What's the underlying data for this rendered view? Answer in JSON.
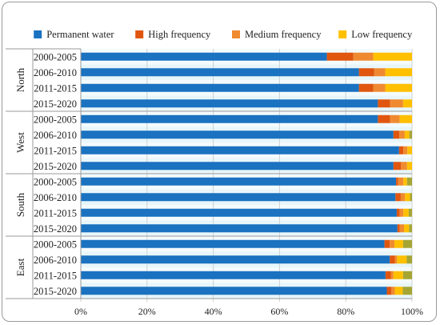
{
  "chart_data": {
    "type": "bar",
    "orientation": "horizontal",
    "stacked": true,
    "percent": true,
    "xlim": [
      0,
      100
    ],
    "x_ticks": [
      "0%",
      "20%",
      "40%",
      "60%",
      "80%",
      "100%"
    ],
    "legend_position": "top",
    "grid": true,
    "colors": [
      "#1a72c0",
      "#e0560f",
      "#f08a30",
      "#ffc000",
      "#a5a534"
    ],
    "groups": [
      {
        "name": "North",
        "categories": [
          "2000-2005",
          "2006-2010",
          "2011-2015",
          "2015-2020"
        ]
      },
      {
        "name": "West",
        "categories": [
          "2000-2005",
          "2006-2010",
          "2011-2015",
          "2015-2020"
        ]
      },
      {
        "name": "South",
        "categories": [
          "2000-2005",
          "2006-2010",
          "2011-2015",
          "2015-2020"
        ]
      },
      {
        "name": "East",
        "categories": [
          "2000-2005",
          "2006-2010",
          "2011-2015",
          "2015-2020"
        ]
      }
    ],
    "series": [
      {
        "name": "Permanent water",
        "color": "#1a72c0",
        "values": [
          74.3,
          84.0,
          84.0,
          89.7,
          89.7,
          94.4,
          96.1,
          94.4,
          95.2,
          95.0,
          95.4,
          95.6,
          91.7,
          93.3,
          92.0,
          92.4
        ]
      },
      {
        "name": "High frequency",
        "color": "#e0560f",
        "values": [
          8.0,
          4.6,
          4.3,
          3.7,
          3.7,
          1.8,
          1.3,
          2.3,
          0.6,
          1.6,
          0.9,
          0.7,
          1.6,
          1.5,
          1.6,
          1.4
        ]
      },
      {
        "name": "Medium frequency",
        "color": "#f08a30",
        "values": [
          6.0,
          3.3,
          3.6,
          3.9,
          2.9,
          1.6,
          1.2,
          1.8,
          1.6,
          1.3,
          1.1,
          1.3,
          1.4,
          0.7,
          0.8,
          1.0
        ]
      },
      {
        "name": "Low frequency",
        "color": "#ffc000",
        "values": [
          11.7,
          8.1,
          8.1,
          2.7,
          3.7,
          1.4,
          1.4,
          1.5,
          1.1,
          1.5,
          1.6,
          1.5,
          2.6,
          2.9,
          2.9,
          2.4
        ]
      },
      {
        "color": "#a5a534",
        "values": [
          0,
          0,
          0,
          0,
          0,
          0.8,
          0,
          0,
          1.5,
          0.6,
          1.0,
          0.9,
          2.7,
          1.6,
          2.7,
          2.8
        ]
      }
    ]
  }
}
